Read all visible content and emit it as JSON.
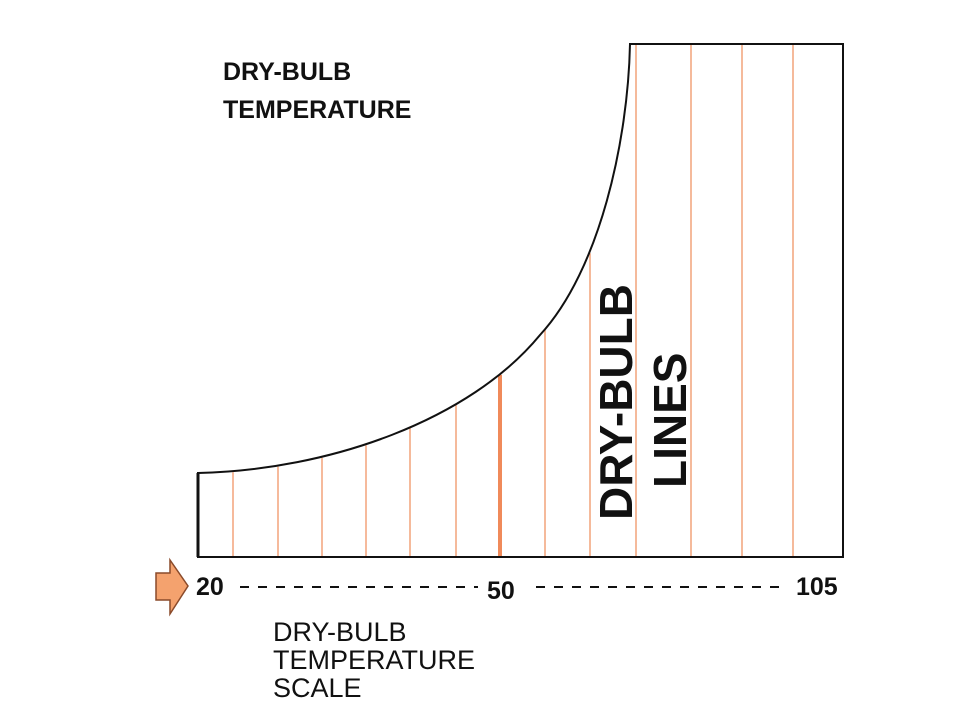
{
  "colors": {
    "outline": "#111111",
    "dry_bulb_line": "#f2a37a",
    "highlight_line": "#f08a5a",
    "arrow_fill": "#f4a26e",
    "arrow_stroke": "#8a4a2a",
    "dash": "#111111"
  },
  "labels": {
    "region_title_line1": "DRY-BULB",
    "region_title_line2": "TEMPERATURE",
    "lines_label_line1": "DRY-BULB",
    "lines_label_line2": "LINES",
    "scale_caption_line1": "DRY-BULB",
    "scale_caption_line2": "TEMPERATURE",
    "scale_caption_line3": "SCALE"
  },
  "scale": {
    "min": 20,
    "mid": 50,
    "max": 105,
    "min_label": "20",
    "mid_label": "50",
    "max_label": "105"
  },
  "dry_bulb_line_count": 13,
  "highlighted_line_value": 50,
  "arrow_icon": "right-arrow-icon"
}
